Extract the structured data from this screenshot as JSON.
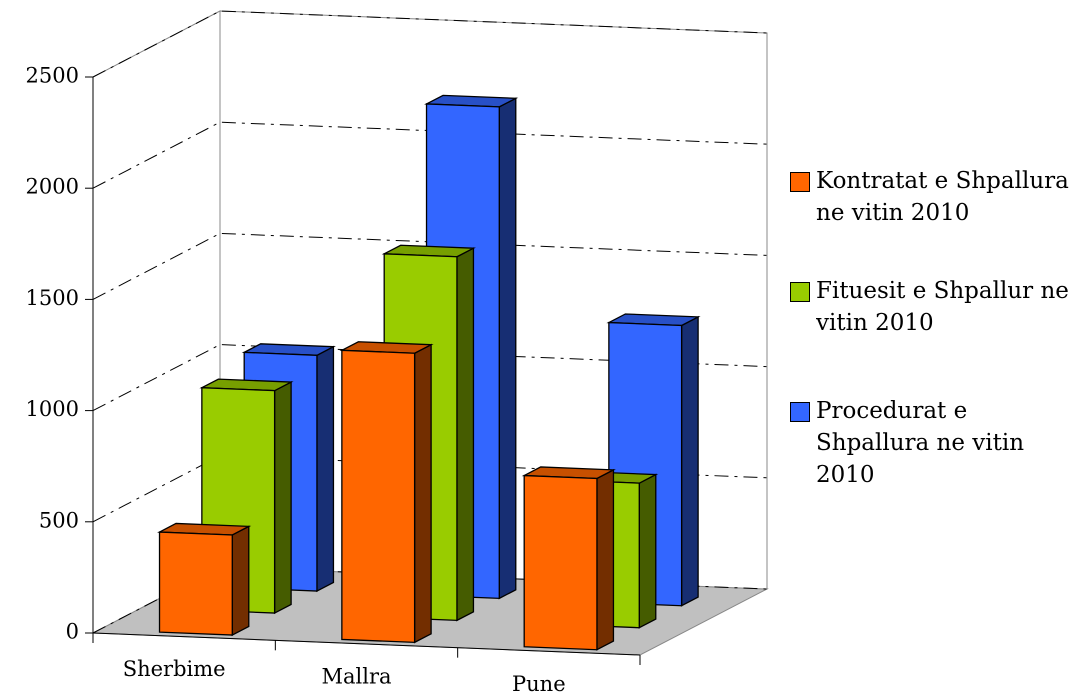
{
  "chart_data": {
    "type": "bar3d",
    "categories": [
      "Sherbime",
      "Mallra",
      "Pune"
    ],
    "series": [
      {
        "name": "Kontratat e Shpallura ne vitin 2010",
        "color": "#ff6600",
        "values": [
          450,
          1300,
          770
        ]
      },
      {
        "name": "Fituesit e Shpallur ne vitin 2010",
        "color": "#99cc00",
        "values": [
          1000,
          1635,
          650
        ]
      },
      {
        "name": "Procedurat e Shpallura ne vitin 2010",
        "color": "#3366ff",
        "values": [
          1060,
          2210,
          1260
        ]
      }
    ],
    "ylim": [
      0,
      2500
    ],
    "yticks": [
      0,
      500,
      1000,
      1500,
      2000,
      2500
    ],
    "grid": true,
    "legend": "right"
  }
}
